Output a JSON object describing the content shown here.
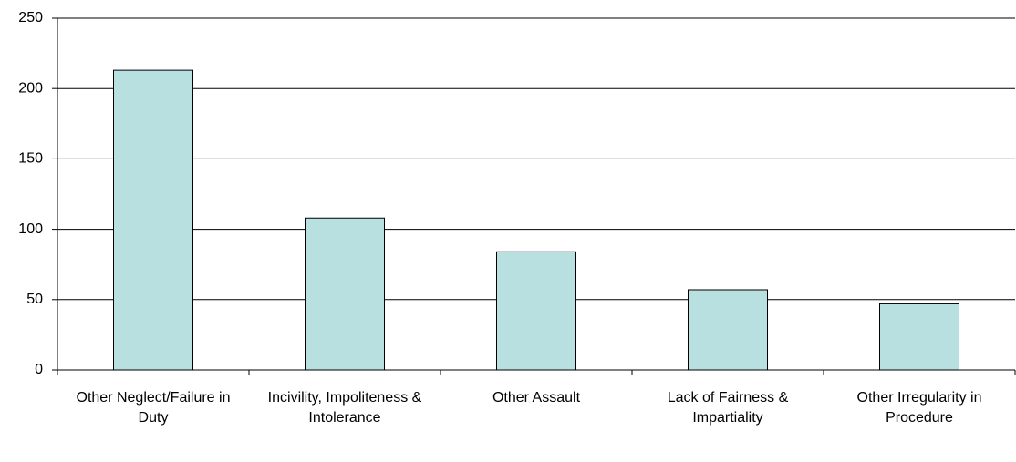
{
  "chart_data": {
    "type": "bar",
    "categories": [
      "Other Neglect/Failure in Duty",
      "Incivility, Impoliteness & Intolerance",
      "Other Assault",
      "Lack of Fairness & Impartiality",
      "Other Irregularity in Procedure"
    ],
    "values": [
      213,
      108,
      84,
      57,
      47
    ],
    "color": "#b9e0e0",
    "ylim": [
      0,
      250
    ],
    "yticks": [
      0,
      50,
      100,
      150,
      200,
      250
    ],
    "grid": true
  }
}
